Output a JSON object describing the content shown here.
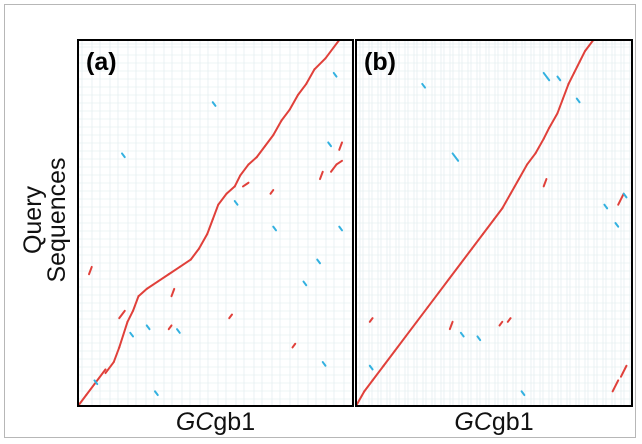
{
  "ylabel": "Query Sequences",
  "colors": {
    "forward": "#e0403a",
    "reverse": "#33b1e0",
    "grid": "#dde9ec",
    "frame": "#000000"
  },
  "chart_data": [
    {
      "type": "scatter",
      "panel_label": "(a)",
      "xlabel_italic": "GC",
      "xlabel_rest": "gb1",
      "ylabel": "Query Sequences",
      "grid": true,
      "xlim": [
        0,
        1
      ],
      "ylim": [
        0,
        1
      ],
      "series": [
        {
          "color": "forward",
          "segments": [
            [
              0.0,
              0.0,
              0.03,
              0.03
            ],
            [
              0.03,
              0.03,
              0.06,
              0.06
            ],
            [
              0.06,
              0.06,
              0.1,
              0.1
            ],
            [
              0.1,
              0.09,
              0.13,
              0.12
            ],
            [
              0.13,
              0.12,
              0.15,
              0.16
            ],
            [
              0.15,
              0.16,
              0.18,
              0.23
            ],
            [
              0.18,
              0.23,
              0.2,
              0.26
            ],
            [
              0.2,
              0.26,
              0.22,
              0.3
            ],
            [
              0.22,
              0.3,
              0.25,
              0.32
            ],
            [
              0.25,
              0.32,
              0.29,
              0.34
            ],
            [
              0.29,
              0.34,
              0.33,
              0.36
            ],
            [
              0.33,
              0.36,
              0.37,
              0.38
            ],
            [
              0.37,
              0.38,
              0.41,
              0.4
            ],
            [
              0.41,
              0.4,
              0.44,
              0.43
            ],
            [
              0.44,
              0.43,
              0.47,
              0.47
            ],
            [
              0.47,
              0.47,
              0.49,
              0.51
            ],
            [
              0.49,
              0.51,
              0.51,
              0.55
            ],
            [
              0.51,
              0.55,
              0.54,
              0.58
            ],
            [
              0.54,
              0.58,
              0.57,
              0.6
            ],
            [
              0.57,
              0.6,
              0.59,
              0.63
            ],
            [
              0.59,
              0.63,
              0.62,
              0.66
            ],
            [
              0.62,
              0.66,
              0.65,
              0.68
            ],
            [
              0.65,
              0.68,
              0.68,
              0.71
            ],
            [
              0.68,
              0.71,
              0.71,
              0.74
            ],
            [
              0.71,
              0.74,
              0.74,
              0.78
            ],
            [
              0.74,
              0.78,
              0.77,
              0.81
            ],
            [
              0.77,
              0.81,
              0.8,
              0.85
            ],
            [
              0.8,
              0.85,
              0.83,
              0.88
            ],
            [
              0.83,
              0.88,
              0.86,
              0.92
            ],
            [
              0.86,
              0.92,
              0.9,
              0.95
            ],
            [
              0.9,
              0.95,
              0.93,
              0.98
            ],
            [
              0.93,
              0.98,
              0.95,
              1.0
            ],
            [
              0.6,
              0.6,
              0.62,
              0.61
            ],
            [
              0.7,
              0.58,
              0.71,
              0.59
            ],
            [
              0.88,
              0.62,
              0.89,
              0.64
            ],
            [
              0.92,
              0.64,
              0.94,
              0.66
            ],
            [
              0.94,
              0.66,
              0.96,
              0.67
            ],
            [
              0.95,
              0.7,
              0.96,
              0.72
            ],
            [
              0.04,
              0.36,
              0.05,
              0.38
            ],
            [
              0.15,
              0.24,
              0.17,
              0.26
            ],
            [
              0.34,
              0.3,
              0.35,
              0.32
            ],
            [
              0.33,
              0.21,
              0.34,
              0.22
            ],
            [
              0.55,
              0.24,
              0.56,
              0.25
            ],
            [
              0.78,
              0.16,
              0.79,
              0.17
            ]
          ]
        },
        {
          "color": "reverse",
          "segments": [
            [
              0.49,
              0.83,
              0.5,
              0.82
            ],
            [
              0.57,
              0.56,
              0.58,
              0.55
            ],
            [
              0.19,
              0.2,
              0.2,
              0.19
            ],
            [
              0.25,
              0.22,
              0.26,
              0.21
            ],
            [
              0.36,
              0.21,
              0.37,
              0.2
            ],
            [
              0.06,
              0.07,
              0.07,
              0.06
            ],
            [
              0.16,
              0.69,
              0.17,
              0.68
            ],
            [
              0.91,
              0.72,
              0.92,
              0.71
            ],
            [
              0.95,
              0.49,
              0.96,
              0.48
            ],
            [
              0.71,
              0.49,
              0.72,
              0.48
            ],
            [
              0.89,
              0.12,
              0.9,
              0.11
            ],
            [
              0.82,
              0.34,
              0.83,
              0.33
            ],
            [
              0.28,
              0.04,
              0.29,
              0.03
            ],
            [
              0.93,
              0.91,
              0.94,
              0.9
            ],
            [
              0.87,
              0.4,
              0.88,
              0.39
            ]
          ]
        }
      ]
    },
    {
      "type": "scatter",
      "panel_label": "(b)",
      "xlabel_italic": "GC",
      "xlabel_rest": "gb1",
      "grid": true,
      "xlim": [
        0,
        1
      ],
      "ylim": [
        0,
        1
      ],
      "series": [
        {
          "color": "forward",
          "segments": [
            [
              0.0,
              0.0,
              0.03,
              0.04
            ],
            [
              0.03,
              0.04,
              0.06,
              0.07
            ],
            [
              0.06,
              0.07,
              0.1,
              0.11
            ],
            [
              0.1,
              0.11,
              0.14,
              0.15
            ],
            [
              0.14,
              0.15,
              0.18,
              0.19
            ],
            [
              0.18,
              0.19,
              0.22,
              0.23
            ],
            [
              0.22,
              0.23,
              0.26,
              0.27
            ],
            [
              0.26,
              0.27,
              0.3,
              0.31
            ],
            [
              0.3,
              0.31,
              0.34,
              0.35
            ],
            [
              0.34,
              0.35,
              0.38,
              0.39
            ],
            [
              0.38,
              0.39,
              0.42,
              0.43
            ],
            [
              0.42,
              0.43,
              0.46,
              0.47
            ],
            [
              0.46,
              0.47,
              0.5,
              0.51
            ],
            [
              0.5,
              0.51,
              0.53,
              0.54
            ],
            [
              0.53,
              0.54,
              0.56,
              0.58
            ],
            [
              0.56,
              0.58,
              0.59,
              0.62
            ],
            [
              0.59,
              0.62,
              0.62,
              0.66
            ],
            [
              0.62,
              0.66,
              0.65,
              0.69
            ],
            [
              0.65,
              0.69,
              0.68,
              0.73
            ],
            [
              0.68,
              0.73,
              0.7,
              0.76
            ],
            [
              0.7,
              0.76,
              0.73,
              0.8
            ],
            [
              0.73,
              0.8,
              0.75,
              0.84
            ],
            [
              0.75,
              0.84,
              0.77,
              0.88
            ],
            [
              0.77,
              0.88,
              0.79,
              0.91
            ],
            [
              0.79,
              0.91,
              0.81,
              0.94
            ],
            [
              0.81,
              0.94,
              0.83,
              0.97
            ],
            [
              0.83,
              0.97,
              0.86,
              1.0
            ],
            [
              0.93,
              0.04,
              0.95,
              0.07
            ],
            [
              0.96,
              0.08,
              0.98,
              0.11
            ],
            [
              0.95,
              0.55,
              0.97,
              0.58
            ],
            [
              0.34,
              0.21,
              0.35,
              0.23
            ],
            [
              0.52,
              0.22,
              0.53,
              0.23
            ],
            [
              0.55,
              0.23,
              0.56,
              0.24
            ],
            [
              0.05,
              0.23,
              0.06,
              0.24
            ],
            [
              0.68,
              0.6,
              0.69,
              0.62
            ]
          ]
        },
        {
          "color": "reverse",
          "segments": [
            [
              0.35,
              0.69,
              0.37,
              0.67
            ],
            [
              0.44,
              0.19,
              0.45,
              0.18
            ],
            [
              0.24,
              0.88,
              0.25,
              0.87
            ],
            [
              0.68,
              0.91,
              0.7,
              0.89
            ],
            [
              0.73,
              0.9,
              0.74,
              0.89
            ],
            [
              0.9,
              0.55,
              0.91,
              0.54
            ],
            [
              0.94,
              0.5,
              0.95,
              0.49
            ],
            [
              0.97,
              0.58,
              0.98,
              0.57
            ],
            [
              0.6,
              0.04,
              0.61,
              0.03
            ],
            [
              0.38,
              0.2,
              0.39,
              0.19
            ],
            [
              0.05,
              0.11,
              0.06,
              0.1
            ],
            [
              0.8,
              0.84,
              0.81,
              0.83
            ]
          ]
        }
      ]
    }
  ]
}
